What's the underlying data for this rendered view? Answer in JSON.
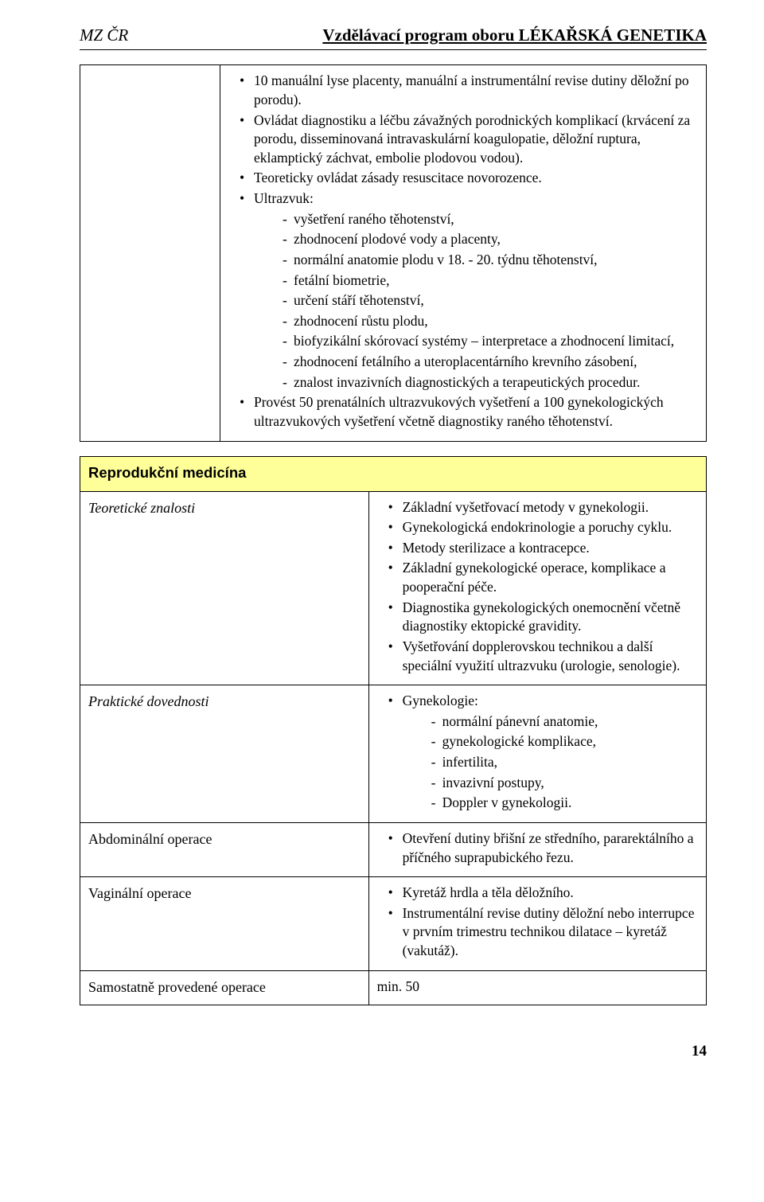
{
  "header": {
    "left": "MZ ČR",
    "right": "Vzdělávací program oboru LÉKAŘSKÁ GENETIKA"
  },
  "block1": {
    "items": [
      {
        "text": "10 manuální lyse placenty, manuální a instrumentální revise dutiny děložní po porodu)."
      },
      {
        "text": "Ovládat diagnostiku a léčbu závažných porodnických komplikací (krvácení za porodu, disseminovaná intravaskulární koagulopatie, děložní ruptura, eklamptický záchvat, embolie plodovou vodou)."
      },
      {
        "text": "Teoreticky ovládat zásady resuscitace novorozence."
      },
      {
        "text": "Ultrazvuk:",
        "sub": [
          "vyšetření raného těhotenství,",
          "zhodnocení plodové vody a placenty,",
          "normální anatomie plodu v 18. - 20. týdnu těhotenství,",
          "fetální biometrie,",
          "určení stáří těhotenství,",
          "zhodnocení růstu plodu,",
          "biofyzikální skórovací systémy – interpretace a zhodnocení limitací,",
          "zhodnocení fetálního a uteroplacentárního krevního zásobení,",
          "znalost invazivních diagnostických a terapeutických procedur."
        ]
      },
      {
        "text": "Provést 50 prenatálních ultrazvukových vyšetření a 100 gynekologických ultrazvukových vyšetření včetně diagnostiky raného těhotenství."
      }
    ]
  },
  "section2": {
    "title": "Reprodukční medicína",
    "rows": {
      "theoretical": {
        "label": "Teoretické znalosti",
        "items": [
          "Základní vyšetřovací metody v gynekologii.",
          "Gynekologická endokrinologie a poruchy cyklu.",
          "Metody sterilizace a kontracepce.",
          "Základní gynekologické operace, komplikace a pooperační péče.",
          "Diagnostika gynekologických onemocnění včetně diagnostiky ektopické gravidity.",
          "Vyšetřování dopplerovskou technikou a další speciální využití ultrazvuku (urologie, senologie)."
        ]
      },
      "practical": {
        "label": "Praktické dovednosti",
        "items": [
          {
            "text": "Gynekologie:",
            "sub": [
              "normální pánevní anatomie,",
              "gynekologické komplikace,",
              "infertilita,",
              "invazivní postupy,",
              "Doppler v gynekologii."
            ]
          }
        ]
      },
      "abdominal": {
        "label": "Abdominální operace",
        "items": [
          "Otevření dutiny břišní ze středního, pararektálního a příčného suprapubického řezu."
        ]
      },
      "vaginal": {
        "label": "Vaginální operace",
        "items": [
          "Kyretáž hrdla a těla děložního.",
          "Instrumentální revise dutiny děložní nebo interrupce v prvním trimestru technikou dilatace – kyretáž (vakutáž)."
        ]
      }
    },
    "summary": {
      "label": "Samostatně provedené operace",
      "value": "min. 50"
    }
  },
  "pageNumber": "14"
}
